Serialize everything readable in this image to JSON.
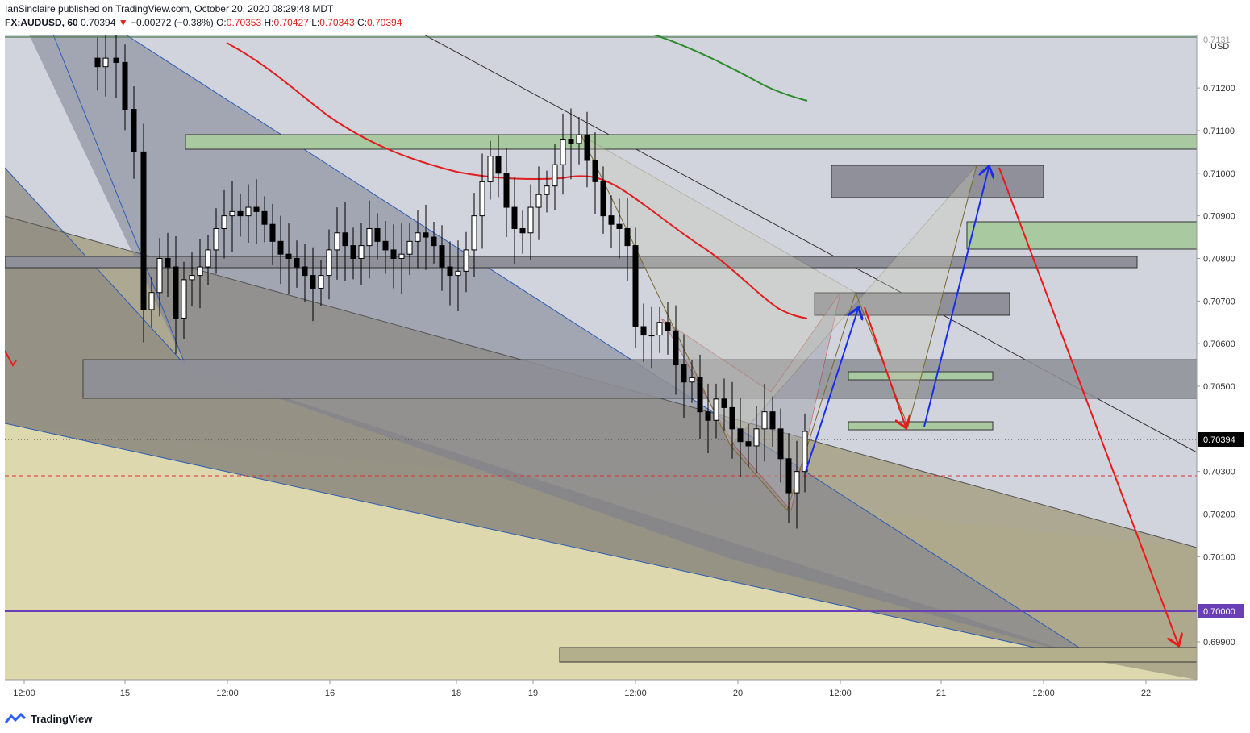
{
  "header": {
    "publisher_line": "IanSinclaire published on TradingView.com, October 20, 2020 08:29:48 MDT",
    "symbol_interval": "FX:AUDUSD, 60",
    "last_price": "0.70394",
    "change_arrow": "▼",
    "change": "−0.00272 (−0.38%)",
    "o_label": "O:",
    "o_value": "0.70353",
    "h_label": "H:",
    "h_value": "0.70427",
    "l_label": "L:",
    "l_value": "0.70343",
    "c_label": "C:",
    "c_value": "0.70394"
  },
  "price_axis": {
    "currency": "USD",
    "top_partial_label": "0.7131",
    "ticks": [
      {
        "value": 0.712,
        "label": "0.71200"
      },
      {
        "value": 0.711,
        "label": "0.71100"
      },
      {
        "value": 0.71,
        "label": "0.71000"
      },
      {
        "value": 0.709,
        "label": "0.70900"
      },
      {
        "value": 0.708,
        "label": "0.70800"
      },
      {
        "value": 0.707,
        "label": "0.70700"
      },
      {
        "value": 0.706,
        "label": "0.70600"
      },
      {
        "value": 0.705,
        "label": "0.70500"
      },
      {
        "value": 0.703,
        "label": "0.70300"
      },
      {
        "value": 0.702,
        "label": "0.70200"
      },
      {
        "value": 0.701,
        "label": "0.70100"
      },
      {
        "value": 0.699,
        "label": "0.69900"
      }
    ],
    "current_price_label": "0.70394",
    "level_label": "0.70000"
  },
  "time_axis": {
    "labels": [
      "12:00",
      "15",
      "12:00",
      "16",
      "18",
      "19",
      "12:00",
      "20",
      "12:00",
      "21",
      "12:00",
      "22"
    ]
  },
  "footer": {
    "brand": "TradingView"
  },
  "colors": {
    "bearish": "#000000",
    "bullish": "#ffffff",
    "ma_fast": "#e02020",
    "ma_slow": "#2e8b2e",
    "projection_up": "#1a2ee8",
    "projection_down": "#e81a1a",
    "level_line": "#6a3fb5",
    "chart_bg": "#d1d4dc"
  },
  "chart_data": {
    "type": "candlestick",
    "title": "FX:AUDUSD, 60",
    "currency": "USD",
    "y_range": [
      0.6985,
      0.7135
    ],
    "y_ticks": [
      0.699,
      0.7,
      0.701,
      0.702,
      0.703,
      0.704,
      0.705,
      0.706,
      0.707,
      0.708,
      0.709,
      0.71,
      0.711,
      0.712
    ],
    "x_labels": [
      "12:00",
      "15",
      "12:00",
      "16",
      "18",
      "19",
      "12:00",
      "20",
      "12:00",
      "21",
      "12:00",
      "22"
    ],
    "last_price": 0.70394,
    "key_levels": [
      {
        "value": 0.7,
        "label": "0.70000",
        "color": "#6a3fb5"
      },
      {
        "value": 0.7031,
        "style": "dashed",
        "color": "#e03131"
      }
    ],
    "moving_averages": [
      {
        "color": "#e02020"
      },
      {
        "color": "#2e8b2e"
      }
    ],
    "candles_approx": [
      {
        "t": "15 14:00",
        "o": 0.7125,
        "h": 0.713,
        "l": 0.7122,
        "c": 0.7127
      },
      {
        "t": "15 20:00",
        "o": 0.7118,
        "h": 0.7124,
        "l": 0.7108,
        "c": 0.711
      },
      {
        "t": "15 23:00",
        "o": 0.7098,
        "h": 0.71,
        "l": 0.7065,
        "c": 0.7068
      },
      {
        "t": "16 06:00",
        "o": 0.7068,
        "h": 0.7081,
        "l": 0.706,
        "c": 0.7078
      },
      {
        "t": "16 14:00",
        "o": 0.708,
        "h": 0.7095,
        "l": 0.7078,
        "c": 0.709
      },
      {
        "t": "16 22:00",
        "o": 0.709,
        "h": 0.7094,
        "l": 0.7072,
        "c": 0.7076
      },
      {
        "t": "17 00:00",
        "o": 0.7076,
        "h": 0.709,
        "l": 0.7072,
        "c": 0.7086
      },
      {
        "t": "18 18:00",
        "o": 0.7076,
        "h": 0.709,
        "l": 0.7072,
        "c": 0.7089
      },
      {
        "t": "19 03:00",
        "o": 0.7092,
        "h": 0.7107,
        "l": 0.7088,
        "c": 0.7105
      },
      {
        "t": "19 07:00",
        "o": 0.7095,
        "h": 0.7112,
        "l": 0.7092,
        "c": 0.7108
      },
      {
        "t": "19 12:00",
        "o": 0.708,
        "h": 0.7082,
        "l": 0.7058,
        "c": 0.7064
      },
      {
        "t": "19 18:00",
        "o": 0.706,
        "h": 0.7064,
        "l": 0.704,
        "c": 0.7044
      },
      {
        "t": "20 01:00",
        "o": 0.7044,
        "h": 0.705,
        "l": 0.703,
        "c": 0.7034
      },
      {
        "t": "20 08:00",
        "o": 0.7035,
        "h": 0.70427,
        "l": 0.70343,
        "c": 0.70394
      }
    ]
  }
}
